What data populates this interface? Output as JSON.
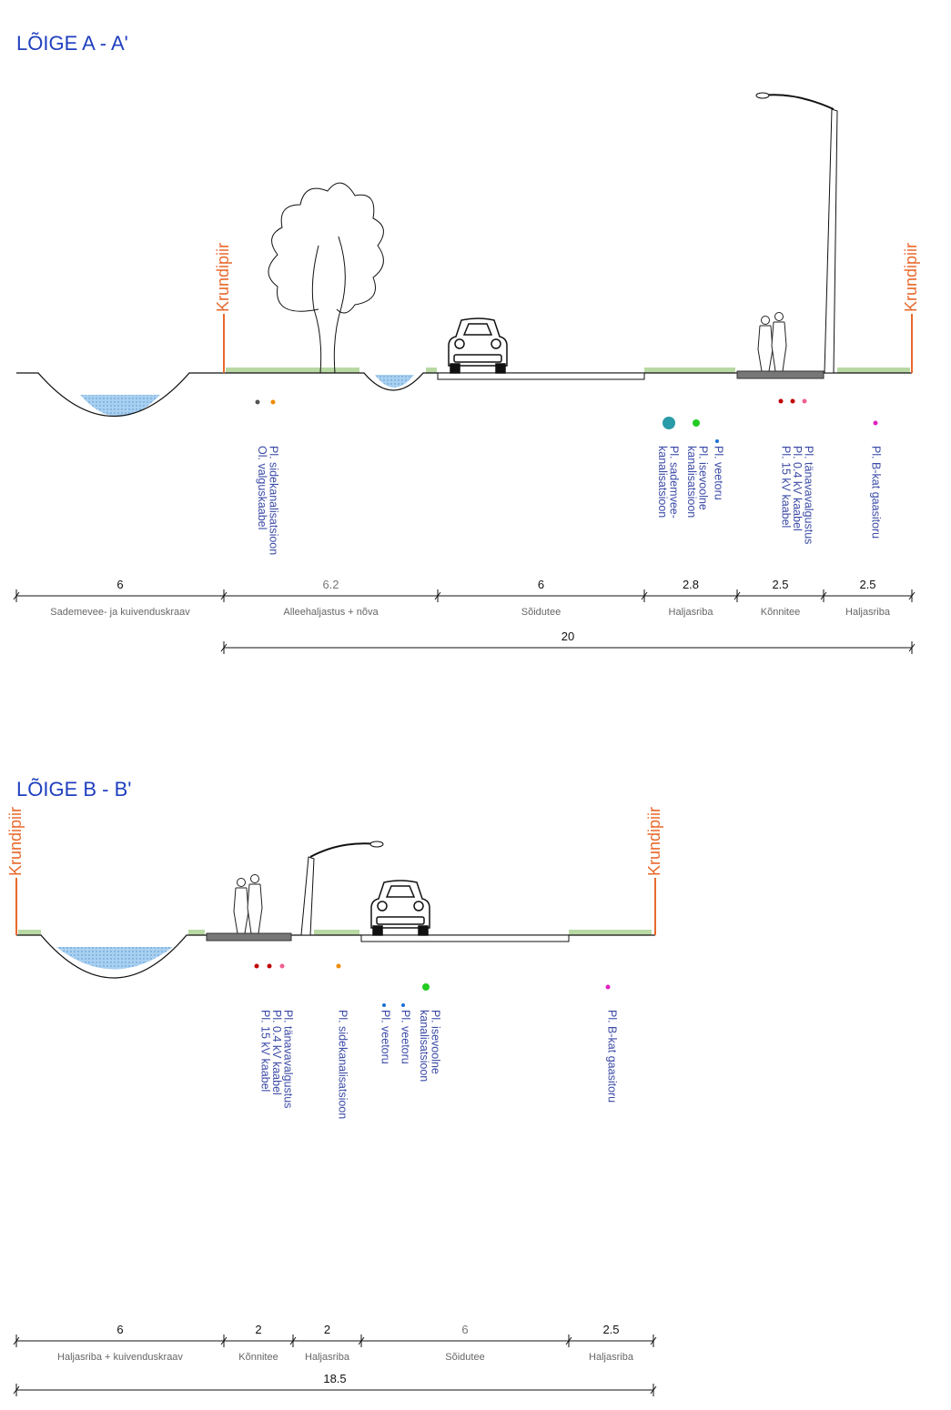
{
  "sections": [
    {
      "title": "LÕIGE A - A'",
      "boundary_left": "Krundipiir",
      "boundary_right": "Krundipiir",
      "utilities": [
        [
          "Pl. sidekanalisatsioon",
          "Ol. valguskaabel"
        ],
        [
          "Pl. sademvee-",
          "kanalisatsioon"
        ],
        [
          "Pl. isevoolne",
          "kanalisatsioon"
        ],
        [
          "Pl. veetoru"
        ],
        [
          "Pl. tänavavalgustus",
          "Pl. 0.4 kV kaabel",
          "Pl. 15 kV kaabel"
        ],
        [
          "Pl. B-kat gaasitoru"
        ]
      ],
      "dimensions": [
        {
          "width": 6,
          "label": "Sademevee- ja kuivenduskraav"
        },
        {
          "width": 6.2,
          "label": "Alleehaljastus + nõva"
        },
        {
          "width": 6,
          "label": "Sõidutee"
        },
        {
          "width": 2.8,
          "label": "Haljasriba"
        },
        {
          "width": 2.5,
          "label": "Kõnnitee"
        },
        {
          "width": 2.5,
          "label": "Haljasriba"
        }
      ],
      "total": 20
    },
    {
      "title": "LÕIGE B - B'",
      "boundary_left": "Krundipiir",
      "boundary_right": "Krundipiir",
      "utilities": [
        [
          "Pl. tänavavalgustus",
          "Pl. 0.4 kV kaabel",
          "Pl. 15 kV kaabel"
        ],
        [
          "Pl. sidekanalisatsioon"
        ],
        [
          "Pl. veetoru"
        ],
        [
          "Pl. veetoru"
        ],
        [
          "Pl. isevoolne",
          "kanalisatsioon"
        ],
        [
          "Pl. B-kat gaasitoru"
        ]
      ],
      "dimensions": [
        {
          "width": 6,
          "label": "Haljasriba + kuivenduskraav"
        },
        {
          "width": 2,
          "label": "Kõnnitee"
        },
        {
          "width": 2,
          "label": "Haljasriba"
        },
        {
          "width": 6,
          "label": "Sõidutee"
        },
        {
          "width": 2.5,
          "label": "Haljasriba"
        }
      ],
      "total": 18.5
    }
  ]
}
